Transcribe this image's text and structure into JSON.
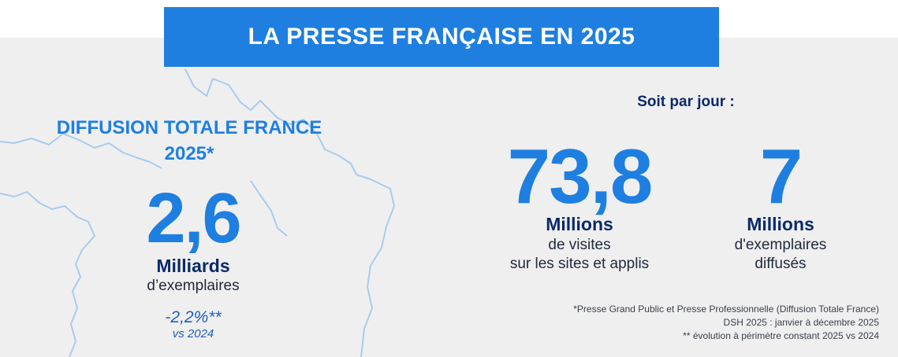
{
  "title": "LA PRESSE FRANÇAISE EN 2025",
  "left": {
    "heading_line1": "DIFFUSION TOTALE FRANCE",
    "heading_line2": "2025*",
    "value": "2,6",
    "unit": "Milliards",
    "desc": "d’exemplaires",
    "evolution": "-2,2%**",
    "evolution_ref": "vs 2024"
  },
  "per_day": {
    "label": "Soit par jour :",
    "visits": {
      "value": "73,8",
      "unit": "Millions",
      "desc_line1": "de visites",
      "desc_line2": "sur les sites et applis"
    },
    "copies": {
      "value": "7",
      "unit": "Millions",
      "desc_line1": "d'exemplaires",
      "desc_line2": "diffusés"
    }
  },
  "footnotes": [
    "*Presse Grand Public et Presse Professionnelle (Diffusion Totale France)",
    "DSH 2025 : janvier à décembre 2025",
    "** évolution à périmètre constant 2025 vs 2024"
  ],
  "colors": {
    "accent_blue": "#1e7fe0",
    "navy": "#0b2a68",
    "panel_bg": "#efeff0",
    "map_line": "#a9cbee"
  },
  "decor": "france-map-outline"
}
